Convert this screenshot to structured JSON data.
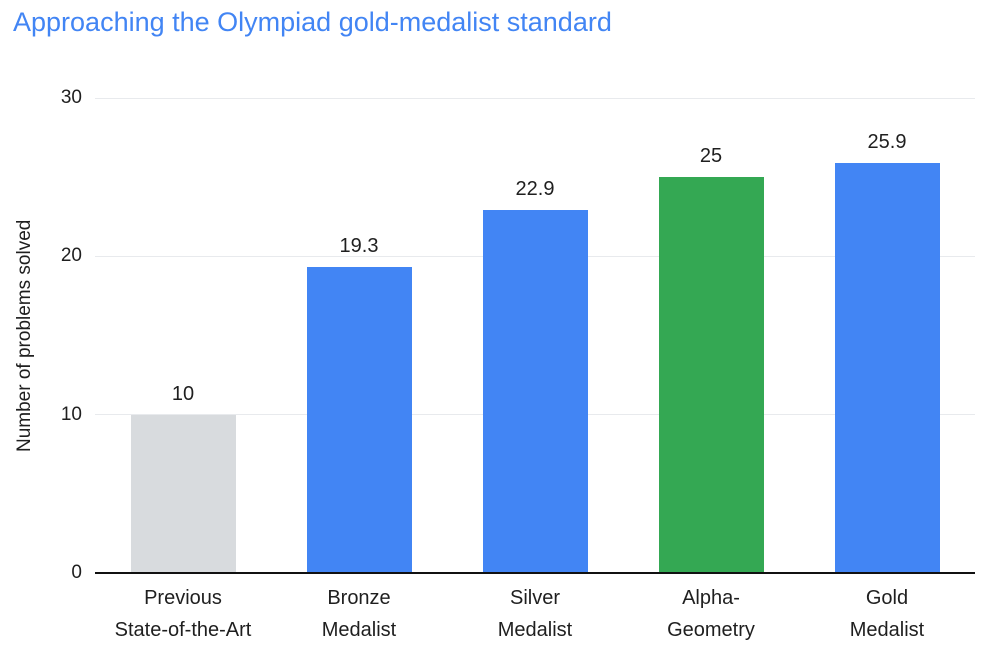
{
  "chart_data": {
    "type": "bar",
    "title": "Approaching the Olympiad gold-medalist standard",
    "xlabel": "",
    "ylabel": "Number of problems solved",
    "ylim": [
      0,
      30
    ],
    "yticks": [
      0,
      10,
      20,
      30
    ],
    "grid": "horizontal",
    "legend": "none",
    "categories": [
      "Previous\nState-of-the-Art",
      "Bronze\nMedalist",
      "Silver\nMedalist",
      "Alpha-\nGeometry",
      "Gold\nMedalist"
    ],
    "values": [
      10,
      19.3,
      22.9,
      25,
      25.9
    ],
    "value_labels": [
      "10",
      "19.3",
      "22.9",
      "25",
      "25.9"
    ],
    "colors": [
      "#d8dbde",
      "#4285f4",
      "#4285f4",
      "#34a853",
      "#4285f4"
    ],
    "title_color": "#4285f4",
    "gridline_color": "#e8eaed",
    "axis_line_color": "#111111",
    "text_color": "#1f1f1f"
  }
}
